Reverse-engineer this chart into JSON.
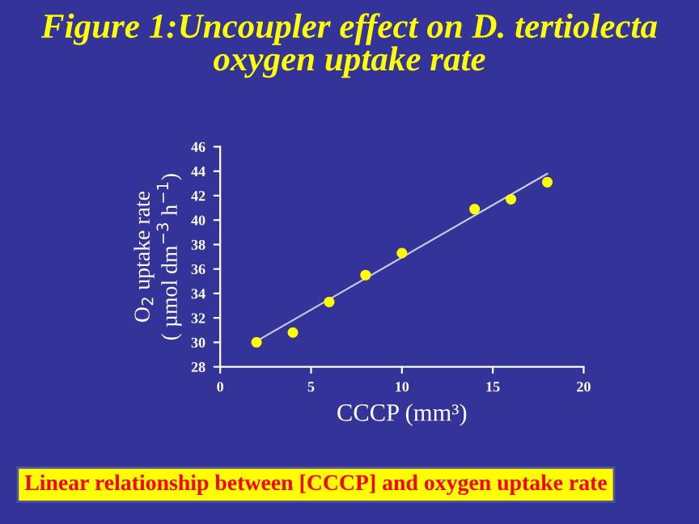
{
  "chart_data": {
    "type": "scatter",
    "title": "Figure 1:Uncoupler effect on D. tertiolecta\noxygen uptake rate",
    "xlabel": "CCCP (mm³)",
    "ylabel": "O$_{2}$ uptake rate\n( µmol dm$^{−3}$ h$^{−1}$)",
    "series": [
      {
        "color": "#ffff00",
        "marker": "circle",
        "x": [
          2,
          4,
          6,
          8,
          10,
          14,
          16,
          18
        ],
        "values": [
          30.0,
          30.8,
          33.3,
          35.5,
          37.3,
          40.9,
          41.7,
          43.1
        ]
      },
      {
        "type": "line",
        "marker": "none",
        "color": "#c8c8e8",
        "x": [
          2,
          18
        ],
        "values": [
          30.1,
          43.8
        ]
      }
    ],
    "xlim": [
      0,
      20
    ],
    "xticks": [
      0,
      5,
      10,
      15,
      20
    ],
    "ylim": [
      28,
      46
    ],
    "yticks": [
      28,
      30,
      32,
      34,
      36,
      38,
      40,
      42,
      44,
      46
    ],
    "grid": false,
    "annotations": [
      "Linear relationship between [CCCP] and oxygen uptake rate"
    ]
  }
}
